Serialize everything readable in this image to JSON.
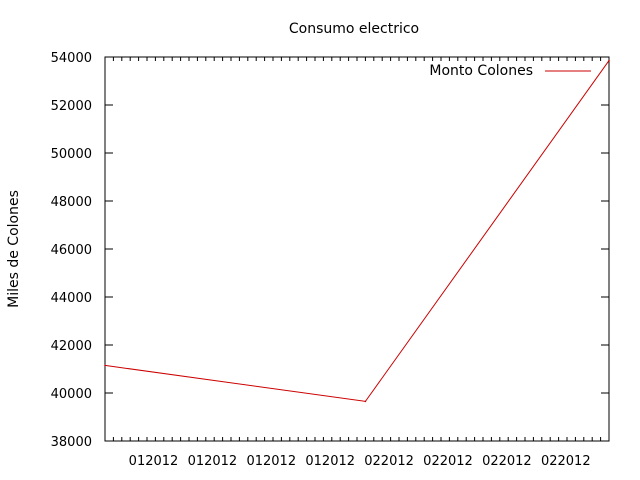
{
  "chart_data": {
    "type": "line",
    "title": "Consumo electrico",
    "xlabel": "",
    "ylabel": "Miles de Colones",
    "x_tick_labels": [
      "012012",
      "012012",
      "012012",
      "012012",
      "022012",
      "022012",
      "022012",
      "022012"
    ],
    "y_ticks": [
      38000,
      40000,
      42000,
      44000,
      46000,
      48000,
      50000,
      52000,
      54000
    ],
    "ylim": [
      38000,
      54000
    ],
    "grid": false,
    "legend_position": "top-right",
    "series": [
      {
        "name": "Monto Colones",
        "color": "#cc0000",
        "points": [
          {
            "x": "2012-01-01",
            "y": 41150
          },
          {
            "x": "2012-02-01",
            "y": 39650
          },
          {
            "x": "2012-03-01",
            "y": 53850
          }
        ]
      }
    ]
  }
}
